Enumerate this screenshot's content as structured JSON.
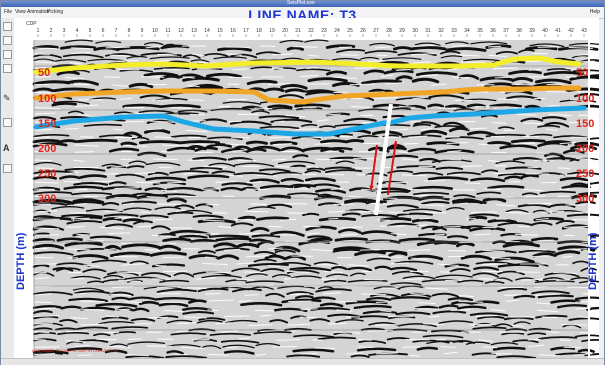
{
  "window": {
    "title": "SeisPlot.exe"
  },
  "menu": {
    "items": [
      "File",
      "View",
      "Animation",
      "Picking"
    ],
    "help": "Help"
  },
  "line_name": "LINE NAME: T3",
  "axis": {
    "cdp_label": "CDP",
    "cdp_numbers": [
      "1",
      "2",
      "3",
      "4",
      "5",
      "6",
      "7",
      "8",
      "9",
      "10",
      "11",
      "12",
      "13",
      "14",
      "15",
      "16",
      "17",
      "18",
      "19",
      "20",
      "21",
      "22",
      "23",
      "24",
      "25",
      "26",
      "27",
      "28",
      "29",
      "30",
      "31",
      "32",
      "33",
      "34",
      "35",
      "36",
      "37",
      "38",
      "39",
      "40",
      "41",
      "42",
      "43"
    ],
    "depth_ticks": [
      "50",
      "100",
      "150",
      "200",
      "250",
      "300"
    ],
    "depth_title": "DEPTH (m)"
  },
  "horizons": [
    {
      "name": "yellow-horizon",
      "color": "#f4ee2a"
    },
    {
      "name": "orange-horizon",
      "color": "#f0a526"
    },
    {
      "name": "blue-horizon",
      "color": "#1ea7e6"
    }
  ],
  "fault": {
    "color": "#ffffff",
    "arrow_color": "#d8141c"
  },
  "footer_note": "LINE NAME: T3 TIME TO DEPTH CONVERTED",
  "colors": {
    "depth_tick": "#e0241b",
    "depth_axis": "#1b36d1",
    "title": "#1b36d1"
  },
  "icons": [
    "pointer-icon",
    "zoom-icon",
    "pan-icon",
    "pick-icon",
    "text-icon",
    "ruler-icon",
    "color-icon"
  ]
}
